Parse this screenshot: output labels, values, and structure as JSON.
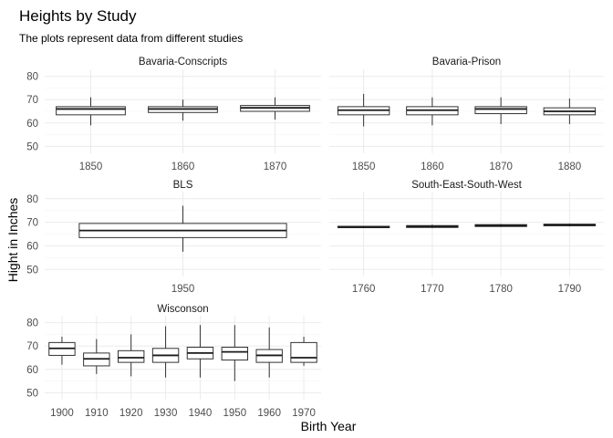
{
  "chart_data": {
    "type": "boxplot",
    "title": "Heights by Study",
    "subtitle": "The plots represent data from different studies",
    "xlabel": "Birth Year",
    "ylabel": "Hight in Inches",
    "ylim": [
      47,
      83
    ],
    "yticks": [
      50,
      60,
      70,
      80
    ],
    "grid": true,
    "facets": [
      {
        "name": "Bavaria-Conscripts",
        "categories": [
          "1850",
          "1860",
          "1870"
        ],
        "boxes": [
          {
            "min": 59,
            "q1": 63.5,
            "median": 66,
            "q3": 67,
            "max": 71
          },
          {
            "min": 61,
            "q1": 64.5,
            "median": 66,
            "q3": 67,
            "max": 70
          },
          {
            "min": 61.5,
            "q1": 65,
            "median": 66.5,
            "q3": 67.5,
            "max": 71
          }
        ]
      },
      {
        "name": "Bavaria-Prison",
        "categories": [
          "1850",
          "1860",
          "1870",
          "1880"
        ],
        "boxes": [
          {
            "min": 58.5,
            "q1": 63.5,
            "median": 65.5,
            "q3": 67,
            "max": 72.5
          },
          {
            "min": 59,
            "q1": 63.5,
            "median": 65.5,
            "q3": 67,
            "max": 71
          },
          {
            "min": 59.5,
            "q1": 64,
            "median": 66,
            "q3": 67,
            "max": 71
          },
          {
            "min": 59.5,
            "q1": 63.5,
            "median": 65,
            "q3": 66.5,
            "max": 70.5
          }
        ]
      },
      {
        "name": "BLS",
        "categories": [
          "1950"
        ],
        "boxes": [
          {
            "min": 57.5,
            "q1": 63.5,
            "median": 66.5,
            "q3": 69.5,
            "max": 77
          }
        ]
      },
      {
        "name": "South-East-South-West",
        "categories": [
          "1760",
          "1770",
          "1780",
          "1790"
        ],
        "boxes": [
          {
            "min": 67.5,
            "q1": 67.7,
            "median": 68,
            "q3": 68.3,
            "max": 68.5
          },
          {
            "min": 67.5,
            "q1": 67.8,
            "median": 68.2,
            "q3": 68.6,
            "max": 69
          },
          {
            "min": 68,
            "q1": 68.2,
            "median": 68.6,
            "q3": 69,
            "max": 69.3
          },
          {
            "min": 68.2,
            "q1": 68.5,
            "median": 68.9,
            "q3": 69.2,
            "max": 69.5
          }
        ]
      },
      {
        "name": "Wisconson",
        "categories": [
          "1900",
          "1910",
          "1920",
          "1930",
          "1940",
          "1950",
          "1960",
          "1970"
        ],
        "boxes": [
          {
            "min": 62,
            "q1": 66,
            "median": 69,
            "q3": 71.5,
            "max": 74
          },
          {
            "min": 58,
            "q1": 61.5,
            "median": 64.5,
            "q3": 67,
            "max": 73
          },
          {
            "min": 57,
            "q1": 63,
            "median": 65,
            "q3": 68,
            "max": 75
          },
          {
            "min": 56.5,
            "q1": 63,
            "median": 66,
            "q3": 69,
            "max": 78.5
          },
          {
            "min": 56.5,
            "q1": 64.5,
            "median": 67,
            "q3": 69.5,
            "max": 79
          },
          {
            "min": 55,
            "q1": 64,
            "median": 67.5,
            "q3": 69.5,
            "max": 79
          },
          {
            "min": 56.5,
            "q1": 63,
            "median": 66,
            "q3": 68.5,
            "max": 78
          },
          {
            "min": 61.5,
            "q1": 63,
            "median": 65,
            "q3": 71.5,
            "max": 74
          }
        ]
      }
    ]
  }
}
